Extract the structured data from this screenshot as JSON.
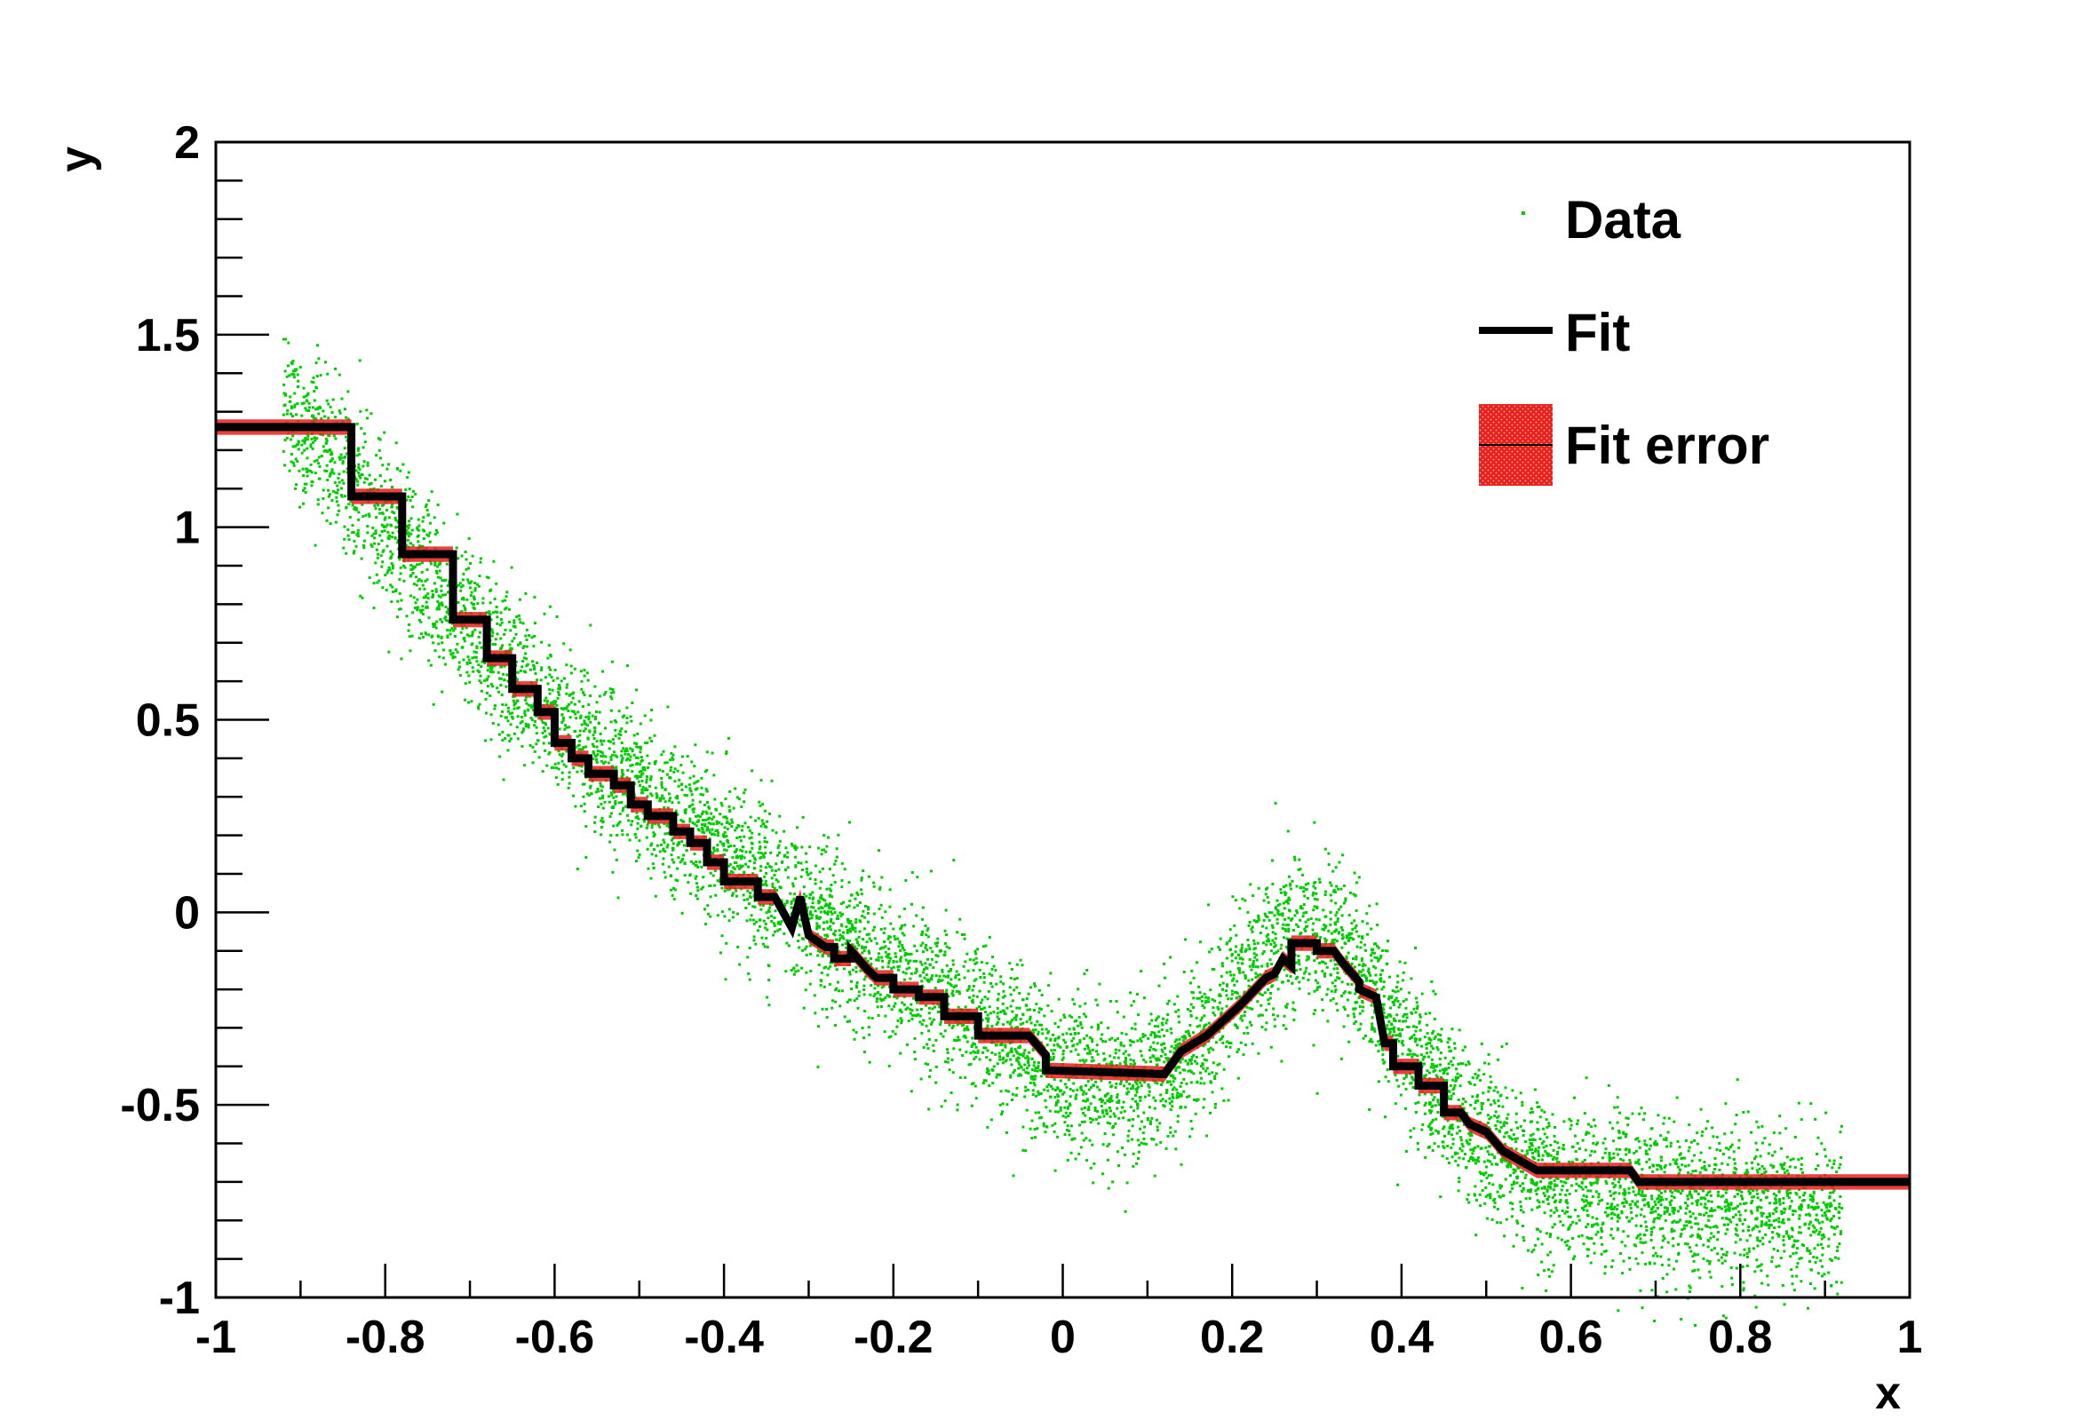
{
  "chart_data": {
    "type": "scatter",
    "xlabel": "x",
    "ylabel": "y",
    "xlim": [
      -1,
      1
    ],
    "ylim": [
      -1,
      2
    ],
    "x_ticks": [
      "-1",
      "-0.8",
      "-0.6",
      "-0.4",
      "-0.2",
      "0",
      "0.2",
      "0.4",
      "0.6",
      "0.8",
      "1"
    ],
    "y_ticks": [
      "-1",
      "-0.5",
      "0",
      "0.5",
      "1",
      "1.5",
      "2"
    ],
    "grid": false,
    "legend_position": "top-right",
    "legend": [
      {
        "label": "Data",
        "kind": "marker"
      },
      {
        "label": "Fit",
        "kind": "line"
      },
      {
        "label": "Fit error",
        "kind": "band"
      }
    ],
    "series": [
      {
        "name": "Data",
        "kind": "scatter",
        "color": "#00cc00",
        "point_count": 8000,
        "x_range": [
          -0.92,
          0.92
        ],
        "noise_sigma": 0.1,
        "trend_x": [
          -0.92,
          -0.85,
          -0.8,
          -0.75,
          -0.7,
          -0.65,
          -0.6,
          -0.55,
          -0.5,
          -0.45,
          -0.4,
          -0.35,
          -0.3,
          -0.25,
          -0.2,
          -0.15,
          -0.1,
          -0.05,
          0.0,
          0.05,
          0.1,
          0.15,
          0.2,
          0.25,
          0.3,
          0.35,
          0.4,
          0.45,
          0.5,
          0.55,
          0.6,
          0.7,
          0.8,
          0.92
        ],
        "trend_y": [
          1.32,
          1.15,
          1.0,
          0.86,
          0.74,
          0.62,
          0.51,
          0.41,
          0.32,
          0.23,
          0.15,
          0.07,
          0.0,
          -0.07,
          -0.14,
          -0.21,
          -0.28,
          -0.34,
          -0.42,
          -0.45,
          -0.44,
          -0.36,
          -0.22,
          -0.08,
          -0.05,
          -0.14,
          -0.32,
          -0.48,
          -0.6,
          -0.68,
          -0.72,
          -0.74,
          -0.76,
          -0.78
        ]
      },
      {
        "name": "Fit",
        "kind": "step",
        "color": "#000000",
        "x": [
          -1.0,
          -0.84,
          -0.84,
          -0.78,
          -0.78,
          -0.72,
          -0.72,
          -0.68,
          -0.68,
          -0.65,
          -0.65,
          -0.62,
          -0.62,
          -0.6,
          -0.6,
          -0.58,
          -0.58,
          -0.56,
          -0.56,
          -0.53,
          -0.53,
          -0.51,
          -0.51,
          -0.49,
          -0.49,
          -0.46,
          -0.46,
          -0.44,
          -0.44,
          -0.42,
          -0.42,
          -0.4,
          -0.4,
          -0.36,
          -0.36,
          -0.34,
          -0.32,
          -0.31,
          -0.3,
          -0.3,
          -0.28,
          -0.27,
          -0.27,
          -0.25,
          -0.25,
          -0.23,
          -0.22,
          -0.2,
          -0.2,
          -0.17,
          -0.17,
          -0.14,
          -0.14,
          -0.1,
          -0.1,
          -0.04,
          -0.02,
          -0.02,
          0.12,
          0.12,
          0.14,
          0.14,
          0.17,
          0.17,
          0.19,
          0.19,
          0.21,
          0.21,
          0.24,
          0.25,
          0.26,
          0.27,
          0.27,
          0.3,
          0.3,
          0.32,
          0.33,
          0.35,
          0.35,
          0.37,
          0.38,
          0.39,
          0.39,
          0.42,
          0.42,
          0.45,
          0.45,
          0.47,
          0.48,
          0.5,
          0.5,
          0.52,
          0.52,
          0.56,
          0.56,
          0.67,
          0.68,
          1.0
        ],
        "y": [
          1.26,
          1.26,
          1.08,
          1.08,
          0.93,
          0.93,
          0.76,
          0.76,
          0.66,
          0.66,
          0.58,
          0.58,
          0.52,
          0.52,
          0.44,
          0.44,
          0.4,
          0.4,
          0.36,
          0.36,
          0.33,
          0.33,
          0.28,
          0.28,
          0.25,
          0.25,
          0.21,
          0.21,
          0.18,
          0.18,
          0.13,
          0.13,
          0.08,
          0.08,
          0.04,
          0.04,
          -0.04,
          0.04,
          -0.06,
          -0.06,
          -0.09,
          -0.09,
          -0.12,
          -0.12,
          -0.1,
          -0.15,
          -0.17,
          -0.17,
          -0.2,
          -0.2,
          -0.22,
          -0.22,
          -0.27,
          -0.27,
          -0.32,
          -0.32,
          -0.37,
          -0.41,
          -0.42,
          -0.42,
          -0.36,
          -0.36,
          -0.32,
          -0.32,
          -0.28,
          -0.28,
          -0.24,
          -0.24,
          -0.17,
          -0.16,
          -0.12,
          -0.14,
          -0.08,
          -0.08,
          -0.1,
          -0.1,
          -0.13,
          -0.18,
          -0.2,
          -0.22,
          -0.34,
          -0.34,
          -0.4,
          -0.4,
          -0.45,
          -0.45,
          -0.52,
          -0.52,
          -0.55,
          -0.57,
          -0.57,
          -0.62,
          -0.62,
          -0.67,
          -0.67,
          -0.67,
          -0.7,
          -0.7
        ]
      },
      {
        "name": "Fit error",
        "kind": "band",
        "color": "#e8201c",
        "half_width": 0.02
      }
    ]
  }
}
